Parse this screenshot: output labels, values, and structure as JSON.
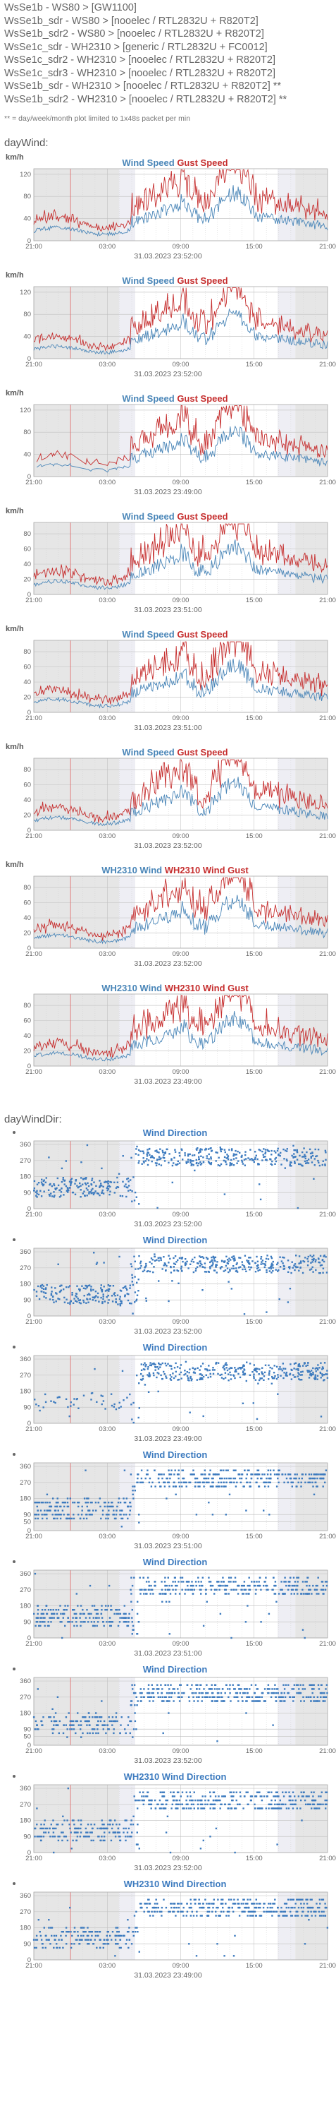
{
  "legend": [
    "WsSe1b - WS80 > [GW1100]",
    "WsSe1b_sdr - WS80 > [nooelec / RTL2832U + R820T2]",
    "WsSe1b_sdr2 - WS80 > [nooelec / RTL2832U + R820T2]",
    "WsSe1c_sdr - WH2310 > [generic / RTL2832U + FC0012]",
    "WsSe1c_sdr2 - WH2310 > [nooelec / RTL2832U + R820T2]",
    "WsSe1c_sdr3 - WH2310 > [nooelec / RTL2832U + R820T2]",
    "WsSe1b_sdr - WH2310 > [nooelec / RTL2832U + R820T2] **",
    "WsSe1b_sdr2 - WH2310 > [nooelec / RTL2832U + R820T2] **"
  ],
  "footnote": "** = day/week/month plot limited to 1x48s packet per min",
  "sections": {
    "wind": "dayWind:",
    "dir": "dayWindDir:"
  },
  "colors": {
    "wind": "#4a86b8",
    "gust": "#c62f2f",
    "dir": "#3d7bbf",
    "plot_bg": "#e6e6e6",
    "night": "#d6d6d6"
  },
  "x_ticks": [
    "21:00",
    "03:00",
    "09:00",
    "15:00",
    "21:00"
  ],
  "wind_charts": [
    {
      "unit": "km/h",
      "title_a": "Wind Speed",
      "title_b": "Gust Speed",
      "timestamp": "31.03.2023 23:52:00",
      "chart_data": {
        "type": "line",
        "x": [
          "21:00",
          "03:00",
          "09:00",
          "15:00",
          "21:00"
        ],
        "ylim": [
          0,
          130
        ],
        "yticks": [
          0,
          40,
          80,
          120
        ],
        "series_names": [
          "Wind Speed",
          "Gust Speed"
        ],
        "peak": 118,
        "seed": 11
      }
    },
    {
      "unit": "km/h",
      "title_a": "Wind Speed",
      "title_b": "Gust Speed",
      "timestamp": "31.03.2023 23:52:00",
      "chart_data": {
        "type": "line",
        "x": [
          "21:00",
          "03:00",
          "09:00",
          "15:00",
          "21:00"
        ],
        "ylim": [
          0,
          130
        ],
        "yticks": [
          0,
          40,
          80,
          120
        ],
        "series_names": [
          "Wind Speed",
          "Gust Speed"
        ],
        "peak": 110,
        "seed": 12
      }
    },
    {
      "unit": "km/h",
      "title_a": "Wind Speed",
      "title_b": "Gust Speed",
      "timestamp": "31.03.2023 23:49:00",
      "chart_data": {
        "type": "line",
        "x": [
          "21:00",
          "03:00",
          "09:00",
          "15:00",
          "21:00"
        ],
        "ylim": [
          0,
          130
        ],
        "yticks": [
          0,
          40,
          80,
          120
        ],
        "series_names": [
          "Wind Speed",
          "Gust Speed"
        ],
        "peak": 112,
        "seed": 13,
        "sparse_start": true
      }
    },
    {
      "unit": "km/h",
      "title_a": "Wind Speed",
      "title_b": "Gust Speed",
      "timestamp": "31.03.2023 23:51:00",
      "chart_data": {
        "type": "line",
        "x": [
          "21:00",
          "03:00",
          "09:00",
          "15:00",
          "21:00"
        ],
        "ylim": [
          0,
          95
        ],
        "yticks": [
          0,
          20,
          40,
          60,
          80
        ],
        "series_names": [
          "Wind Speed",
          "Gust Speed"
        ],
        "peak": 88,
        "seed": 14
      }
    },
    {
      "unit": "km/h",
      "title_a": "Wind Speed",
      "title_b": "Gust Speed",
      "timestamp": "31.03.2023 23:51:00",
      "chart_data": {
        "type": "line",
        "x": [
          "21:00",
          "03:00",
          "09:00",
          "15:00",
          "21:00"
        ],
        "ylim": [
          0,
          95
        ],
        "yticks": [
          0,
          20,
          40,
          60,
          80
        ],
        "series_names": [
          "Wind Speed",
          "Gust Speed"
        ],
        "peak": 86,
        "seed": 15
      }
    },
    {
      "unit": "km/h",
      "title_a": "Wind Speed",
      "title_b": "Gust Speed",
      "timestamp": "31.03.2023 23:52:00",
      "chart_data": {
        "type": "line",
        "x": [
          "21:00",
          "03:00",
          "09:00",
          "15:00",
          "21:00"
        ],
        "ylim": [
          0,
          95
        ],
        "yticks": [
          0,
          20,
          40,
          60,
          80
        ],
        "series_names": [
          "Wind Speed",
          "Gust Speed"
        ],
        "peak": 85,
        "seed": 16
      }
    },
    {
      "unit": "km/h",
      "title_a": "WH2310 Wind",
      "title_b": "WH2310 Wind Gust",
      "timestamp": "31.03.2023 23:52:00",
      "chart_data": {
        "type": "line",
        "x": [
          "21:00",
          "03:00",
          "09:00",
          "15:00",
          "21:00"
        ],
        "ylim": [
          0,
          95
        ],
        "yticks": [
          0,
          20,
          40,
          60,
          80
        ],
        "series_names": [
          "WH2310 Wind",
          "WH2310 Wind Gust"
        ],
        "peak": 86,
        "seed": 17
      }
    },
    {
      "unit": "",
      "title_a": "WH2310 Wind",
      "title_b": "WH2310 Wind Gust",
      "timestamp": "31.03.2023 23:49:00",
      "chart_data": {
        "type": "line",
        "x": [
          "21:00",
          "03:00",
          "09:00",
          "15:00",
          "21:00"
        ],
        "ylim": [
          0,
          95
        ],
        "yticks": [
          0,
          20,
          40,
          60,
          80
        ],
        "series_names": [
          "WH2310 Wind",
          "WH2310 Wind Gust"
        ],
        "peak": 87,
        "seed": 18
      }
    }
  ],
  "dir_charts": [
    {
      "title": "Wind Direction",
      "timestamp": "31.03.2023 23:52:00",
      "chart_data": {
        "type": "scatter",
        "x": [
          "21:00",
          "03:00",
          "09:00",
          "15:00",
          "21:00"
        ],
        "ylim": [
          0,
          380
        ],
        "yticks": [
          0,
          90,
          180,
          270,
          360
        ],
        "series_names": [
          "Wind Direction"
        ],
        "seed": 21,
        "quantized": false
      }
    },
    {
      "title": "Wind Direction",
      "timestamp": "31.03.2023 23:52:00",
      "chart_data": {
        "type": "scatter",
        "x": [
          "21:00",
          "03:00",
          "09:00",
          "15:00",
          "21:00"
        ],
        "ylim": [
          0,
          380
        ],
        "yticks": [
          0,
          90,
          180,
          270,
          360
        ],
        "series_names": [
          "Wind Direction"
        ],
        "seed": 22,
        "quantized": false
      }
    },
    {
      "title": "Wind Direction",
      "timestamp": "31.03.2023 23:49:00",
      "chart_data": {
        "type": "scatter",
        "x": [
          "21:00",
          "03:00",
          "09:00",
          "15:00",
          "21:00"
        ],
        "ylim": [
          0,
          380
        ],
        "yticks": [
          0,
          90,
          180,
          270,
          360
        ],
        "series_names": [
          "Wind Direction"
        ],
        "seed": 23,
        "quantized": false,
        "sparse_start": true
      }
    },
    {
      "title": "Wind Direction",
      "timestamp": "31.03.2023 23:51:00",
      "chart_data": {
        "type": "scatter",
        "x": [
          "21:00",
          "03:00",
          "09:00",
          "15:00",
          "21:00"
        ],
        "ylim": [
          0,
          380
        ],
        "yticks": [
          0,
          50,
          90,
          180,
          270,
          360
        ],
        "series_names": [
          "Wind Direction"
        ],
        "seed": 24,
        "quantized": true
      }
    },
    {
      "title": "Wind Direction",
      "timestamp": "31.03.2023 23:51:00",
      "chart_data": {
        "type": "scatter",
        "x": [
          "21:00",
          "03:00",
          "09:00",
          "15:00",
          "21:00"
        ],
        "ylim": [
          0,
          380
        ],
        "yticks": [
          0,
          90,
          180,
          270,
          360
        ],
        "series_names": [
          "Wind Direction"
        ],
        "seed": 25,
        "quantized": true
      }
    },
    {
      "title": "Wind Direction",
      "timestamp": "31.03.2023 23:52:00",
      "chart_data": {
        "type": "scatter",
        "x": [
          "21:00",
          "03:00",
          "09:00",
          "15:00",
          "21:00"
        ],
        "ylim": [
          0,
          380
        ],
        "yticks": [
          0,
          50,
          90,
          180,
          270,
          360
        ],
        "series_names": [
          "Wind Direction"
        ],
        "seed": 26,
        "quantized": true
      }
    },
    {
      "title": "WH2310 Wind Direction",
      "timestamp": "31.03.2023 23:52:00",
      "chart_data": {
        "type": "scatter",
        "x": [
          "21:00",
          "03:00",
          "09:00",
          "15:00",
          "21:00"
        ],
        "ylim": [
          0,
          380
        ],
        "yticks": [
          0,
          90,
          180,
          270,
          360
        ],
        "series_names": [
          "WH2310 Wind Direction"
        ],
        "seed": 27,
        "quantized": true
      }
    },
    {
      "title": "WH2310 Wind Direction",
      "timestamp": "31.03.2023 23:49:00",
      "chart_data": {
        "type": "scatter",
        "x": [
          "21:00",
          "03:00",
          "09:00",
          "15:00",
          "21:00"
        ],
        "ylim": [
          0,
          380
        ],
        "yticks": [
          0,
          90,
          180,
          270,
          360
        ],
        "series_names": [
          "WH2310 Wind Direction"
        ],
        "seed": 28,
        "quantized": true
      }
    }
  ]
}
